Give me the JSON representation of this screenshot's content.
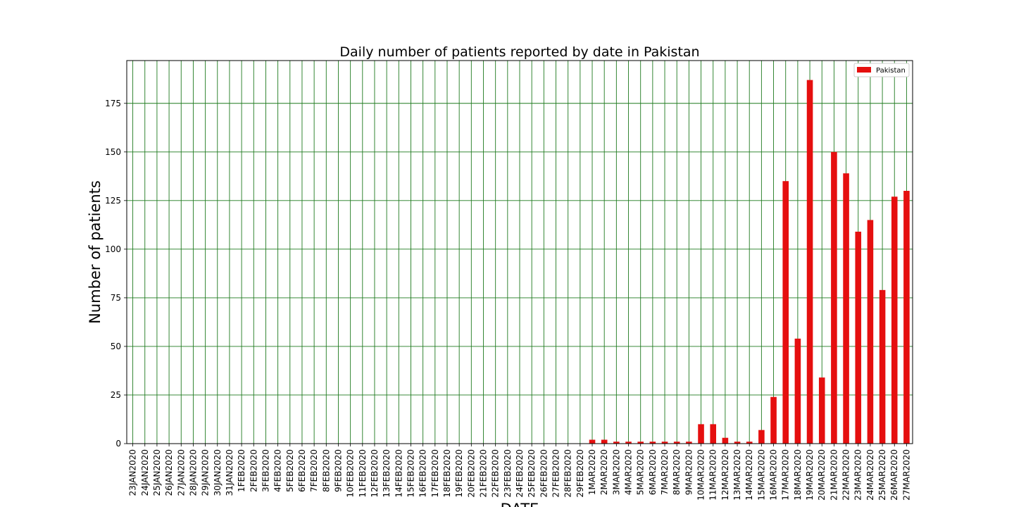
{
  "chart_data": {
    "type": "bar",
    "title": "Daily number of patients reported by date in Pakistan",
    "xlabel": "DATE",
    "ylabel": "Number of patients",
    "ylim": [
      0,
      197
    ],
    "yticks": [
      0,
      25,
      50,
      75,
      100,
      125,
      150,
      175
    ],
    "grid": true,
    "grid_color": "#1f7a1f",
    "bar_color": "#e50f0f",
    "legend_placement": "top-right",
    "categories": [
      "23JAN2020",
      "24JAN2020",
      "25JAN2020",
      "26JAN2020",
      "27JAN2020",
      "28JAN2020",
      "29JAN2020",
      "30JAN2020",
      "31JAN2020",
      "1FEB2020",
      "2FEB2020",
      "3FEB2020",
      "4FEB2020",
      "5FEB2020",
      "6FEB2020",
      "7FEB2020",
      "8FEB2020",
      "9FEB2020",
      "10FEB2020",
      "11FEB2020",
      "12FEB2020",
      "13FEB2020",
      "14FEB2020",
      "15FEB2020",
      "16FEB2020",
      "17FEB2020",
      "18FEB2020",
      "19FEB2020",
      "20FEB2020",
      "21FEB2020",
      "22FEB2020",
      "23FEB2020",
      "24FEB2020",
      "25FEB2020",
      "26FEB2020",
      "27FEB2020",
      "28FEB2020",
      "29FEB2020",
      "1MAR2020",
      "2MAR2020",
      "3MAR2020",
      "4MAR2020",
      "5MAR2020",
      "6MAR2020",
      "7MAR2020",
      "8MAR2020",
      "9MAR2020",
      "10MAR2020",
      "11MAR2020",
      "12MAR2020",
      "13MAR2020",
      "14MAR2020",
      "15MAR2020",
      "16MAR2020",
      "17MAR2020",
      "18MAR2020",
      "19MAR2020",
      "20MAR2020",
      "21MAR2020",
      "22MAR2020",
      "23MAR2020",
      "24MAR2020",
      "25MAR2020",
      "26MAR2020",
      "27MAR2020"
    ],
    "series": [
      {
        "name": "Pakistan",
        "values": [
          0,
          0,
          0,
          0,
          0,
          0,
          0,
          0,
          0,
          0,
          0,
          0,
          0,
          0,
          0,
          0,
          0,
          0,
          0,
          0,
          0,
          0,
          0,
          0,
          0,
          0,
          0,
          0,
          0,
          0,
          0,
          0,
          0,
          0,
          0,
          0,
          0,
          0,
          2,
          2,
          1,
          1,
          1,
          1,
          1,
          1,
          1,
          10,
          10,
          3,
          1,
          1,
          7,
          24,
          135,
          54,
          187,
          34,
          150,
          139,
          109,
          115,
          79,
          127,
          130
        ]
      }
    ]
  }
}
